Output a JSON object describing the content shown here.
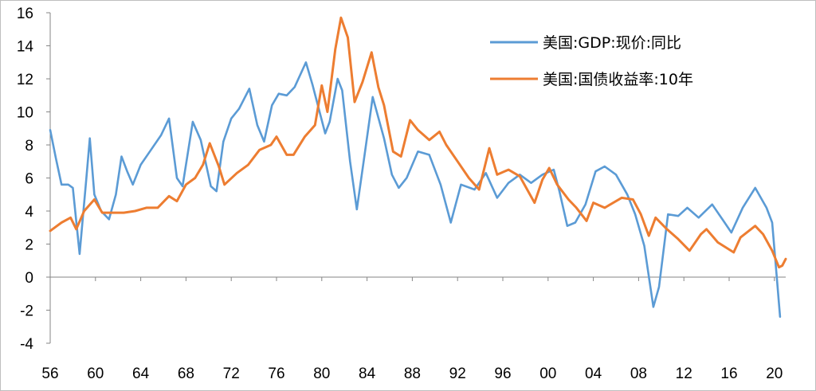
{
  "chart_data": {
    "type": "line",
    "title": "",
    "xlabel": "",
    "ylabel": "",
    "xlim": [
      1956,
      2021
    ],
    "ylim": [
      -4,
      16
    ],
    "y_ticks": [
      16,
      14,
      12,
      10,
      8,
      6,
      4,
      2,
      0,
      -2,
      -4
    ],
    "x_ticks": [
      {
        "value": 1956,
        "label": "56"
      },
      {
        "value": 1960,
        "label": "60"
      },
      {
        "value": 1964,
        "label": "64"
      },
      {
        "value": 1968,
        "label": "68"
      },
      {
        "value": 1972,
        "label": "72"
      },
      {
        "value": 1976,
        "label": "76"
      },
      {
        "value": 1980,
        "label": "80"
      },
      {
        "value": 1984,
        "label": "84"
      },
      {
        "value": 1988,
        "label": "88"
      },
      {
        "value": 1992,
        "label": "92"
      },
      {
        "value": 1996,
        "label": "96"
      },
      {
        "value": 2000,
        "label": "00"
      },
      {
        "value": 2004,
        "label": "04"
      },
      {
        "value": 2008,
        "label": "08"
      },
      {
        "value": 2012,
        "label": "12"
      },
      {
        "value": 2016,
        "label": "16"
      },
      {
        "value": 2020,
        "label": "20"
      }
    ],
    "grid": false,
    "legend_position": "top-right",
    "series": [
      {
        "name": "美国:GDP:现价:同比",
        "color": "#5b9bd5",
        "points": [
          [
            1956.0,
            8.9
          ],
          [
            1956.5,
            7.2
          ],
          [
            1957.0,
            5.6
          ],
          [
            1957.6,
            5.6
          ],
          [
            1958.0,
            5.4
          ],
          [
            1958.6,
            1.4
          ],
          [
            1959.2,
            6.0
          ],
          [
            1959.5,
            8.4
          ],
          [
            1959.9,
            5.0
          ],
          [
            1960.5,
            4.0
          ],
          [
            1961.2,
            3.5
          ],
          [
            1961.8,
            5.0
          ],
          [
            1962.3,
            7.3
          ],
          [
            1962.8,
            6.4
          ],
          [
            1963.3,
            5.6
          ],
          [
            1964.0,
            6.8
          ],
          [
            1964.8,
            7.6
          ],
          [
            1965.8,
            8.6
          ],
          [
            1966.5,
            9.6
          ],
          [
            1967.2,
            6.0
          ],
          [
            1967.7,
            5.5
          ],
          [
            1968.6,
            9.4
          ],
          [
            1969.3,
            8.3
          ],
          [
            1970.2,
            5.5
          ],
          [
            1970.7,
            5.2
          ],
          [
            1971.3,
            8.2
          ],
          [
            1972.0,
            9.6
          ],
          [
            1972.7,
            10.2
          ],
          [
            1973.6,
            11.4
          ],
          [
            1974.3,
            9.2
          ],
          [
            1974.9,
            8.2
          ],
          [
            1975.6,
            10.4
          ],
          [
            1976.2,
            11.1
          ],
          [
            1976.9,
            11.0
          ],
          [
            1977.6,
            11.5
          ],
          [
            1978.6,
            13.0
          ],
          [
            1979.2,
            11.6
          ],
          [
            1980.3,
            8.7
          ],
          [
            1980.7,
            9.4
          ],
          [
            1981.4,
            12.0
          ],
          [
            1981.8,
            11.3
          ],
          [
            1982.5,
            7.0
          ],
          [
            1983.1,
            4.1
          ],
          [
            1983.8,
            7.5
          ],
          [
            1984.5,
            10.9
          ],
          [
            1985.5,
            8.4
          ],
          [
            1986.2,
            6.2
          ],
          [
            1986.8,
            5.4
          ],
          [
            1987.5,
            6.0
          ],
          [
            1988.5,
            7.6
          ],
          [
            1989.5,
            7.4
          ],
          [
            1990.5,
            5.6
          ],
          [
            1991.4,
            3.3
          ],
          [
            1992.3,
            5.6
          ],
          [
            1993.5,
            5.3
          ],
          [
            1994.5,
            6.3
          ],
          [
            1995.5,
            4.8
          ],
          [
            1996.5,
            5.7
          ],
          [
            1997.5,
            6.2
          ],
          [
            1998.5,
            5.7
          ],
          [
            1999.5,
            6.2
          ],
          [
            2000.5,
            6.5
          ],
          [
            2001.0,
            5.2
          ],
          [
            2001.7,
            3.1
          ],
          [
            2002.4,
            3.3
          ],
          [
            2003.3,
            4.4
          ],
          [
            2004.2,
            6.4
          ],
          [
            2005.0,
            6.7
          ],
          [
            2006.0,
            6.2
          ],
          [
            2007.0,
            5.0
          ],
          [
            2007.7,
            3.8
          ],
          [
            2008.5,
            1.9
          ],
          [
            2009.3,
            -1.8
          ],
          [
            2009.8,
            -0.6
          ],
          [
            2010.6,
            3.8
          ],
          [
            2011.5,
            3.7
          ],
          [
            2012.3,
            4.2
          ],
          [
            2013.3,
            3.6
          ],
          [
            2014.5,
            4.4
          ],
          [
            2015.5,
            3.4
          ],
          [
            2016.2,
            2.7
          ],
          [
            2017.2,
            4.2
          ],
          [
            2018.3,
            5.4
          ],
          [
            2019.3,
            4.2
          ],
          [
            2019.8,
            3.3
          ],
          [
            2020.2,
            0.1
          ],
          [
            2020.5,
            -2.4
          ]
        ]
      },
      {
        "name": "美国:国债收益率:10年",
        "color": "#ed7d31",
        "points": [
          [
            1956.0,
            2.8
          ],
          [
            1957.0,
            3.3
          ],
          [
            1957.8,
            3.6
          ],
          [
            1958.3,
            2.9
          ],
          [
            1959.0,
            4.0
          ],
          [
            1959.9,
            4.7
          ],
          [
            1960.6,
            3.9
          ],
          [
            1961.5,
            3.9
          ],
          [
            1962.5,
            3.9
          ],
          [
            1963.5,
            4.0
          ],
          [
            1964.5,
            4.2
          ],
          [
            1965.5,
            4.2
          ],
          [
            1966.5,
            4.9
          ],
          [
            1967.2,
            4.6
          ],
          [
            1968.0,
            5.6
          ],
          [
            1968.8,
            6.0
          ],
          [
            1969.5,
            6.8
          ],
          [
            1970.1,
            8.1
          ],
          [
            1970.9,
            6.7
          ],
          [
            1971.4,
            5.6
          ],
          [
            1972.5,
            6.3
          ],
          [
            1973.5,
            6.8
          ],
          [
            1974.5,
            7.7
          ],
          [
            1975.5,
            8.0
          ],
          [
            1976.0,
            8.5
          ],
          [
            1976.9,
            7.4
          ],
          [
            1977.5,
            7.4
          ],
          [
            1978.5,
            8.5
          ],
          [
            1979.4,
            9.2
          ],
          [
            1980.0,
            11.6
          ],
          [
            1980.5,
            10.0
          ],
          [
            1981.2,
            13.8
          ],
          [
            1981.7,
            15.7
          ],
          [
            1982.3,
            14.5
          ],
          [
            1982.9,
            10.6
          ],
          [
            1983.6,
            11.8
          ],
          [
            1984.4,
            13.6
          ],
          [
            1985.0,
            11.5
          ],
          [
            1985.5,
            10.4
          ],
          [
            1986.3,
            7.6
          ],
          [
            1987.0,
            7.3
          ],
          [
            1987.8,
            9.5
          ],
          [
            1988.5,
            8.9
          ],
          [
            1989.5,
            8.3
          ],
          [
            1990.4,
            8.8
          ],
          [
            1991.0,
            8.0
          ],
          [
            1992.0,
            7.0
          ],
          [
            1993.0,
            6.0
          ],
          [
            1993.9,
            5.3
          ],
          [
            1994.8,
            7.8
          ],
          [
            1995.5,
            6.2
          ],
          [
            1996.5,
            6.5
          ],
          [
            1997.5,
            6.1
          ],
          [
            1998.8,
            4.5
          ],
          [
            1999.5,
            5.9
          ],
          [
            2000.1,
            6.6
          ],
          [
            2000.8,
            5.6
          ],
          [
            2001.8,
            4.7
          ],
          [
            2002.5,
            4.2
          ],
          [
            2003.4,
            3.4
          ],
          [
            2004.0,
            4.5
          ],
          [
            2005.0,
            4.2
          ],
          [
            2006.5,
            4.8
          ],
          [
            2007.5,
            4.7
          ],
          [
            2008.2,
            3.8
          ],
          [
            2008.9,
            2.5
          ],
          [
            2009.5,
            3.6
          ],
          [
            2010.5,
            2.9
          ],
          [
            2011.5,
            2.3
          ],
          [
            2012.5,
            1.6
          ],
          [
            2013.5,
            2.6
          ],
          [
            2014.0,
            2.9
          ],
          [
            2015.0,
            2.1
          ],
          [
            2016.4,
            1.5
          ],
          [
            2017.0,
            2.4
          ],
          [
            2018.3,
            3.1
          ],
          [
            2019.0,
            2.6
          ],
          [
            2019.8,
            1.6
          ],
          [
            2020.4,
            0.6
          ],
          [
            2020.7,
            0.7
          ],
          [
            2021.0,
            1.1
          ]
        ]
      }
    ]
  }
}
